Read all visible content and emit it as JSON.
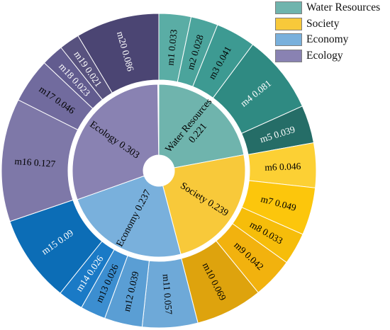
{
  "chart_data": {
    "type": "sunburst",
    "title": "",
    "legend_position": "top-right",
    "inner": [
      {
        "name": "Water Resources",
        "line1": "Water Resources",
        "line2": "0.221",
        "value": 0.221,
        "color": "#6fb4ad"
      },
      {
        "name": "Society",
        "line1": "Society  0.239",
        "line2": "",
        "value": 0.239,
        "color": "#f8c93a"
      },
      {
        "name": "Economy",
        "line1": "Economy  0.237",
        "line2": "",
        "value": 0.237,
        "color": "#79b0dc"
      },
      {
        "name": "Ecology",
        "line1": "Ecology  0.303",
        "line2": "",
        "value": 0.303,
        "color": "#8982b2"
      }
    ],
    "outer": [
      {
        "label": "m1  0.033",
        "value": 0.033,
        "group": "Water Resources",
        "color": "#5aada5",
        "text_color": "#000000"
      },
      {
        "label": "m2  0.028",
        "value": 0.028,
        "group": "Water Resources",
        "color": "#4ba49c",
        "text_color": "#000000"
      },
      {
        "label": "m3  0.041",
        "value": 0.041,
        "group": "Water Resources",
        "color": "#3d9a92",
        "text_color": "#000000"
      },
      {
        "label": "m4  0.081",
        "value": 0.081,
        "group": "Water Resources",
        "color": "#2f8a82",
        "text_color": "#ffffff"
      },
      {
        "label": "m5  0.039",
        "value": 0.039,
        "group": "Water Resources",
        "color": "#256d67",
        "text_color": "#ffffff"
      },
      {
        "label": "m6  0.046",
        "value": 0.046,
        "group": "Society",
        "color": "#fcd034",
        "text_color": "#000000"
      },
      {
        "label": "m7  0.049",
        "value": 0.049,
        "group": "Society",
        "color": "#fcc60c",
        "text_color": "#000000"
      },
      {
        "label": "m8  0.033",
        "value": 0.033,
        "group": "Society",
        "color": "#f6bd0a",
        "text_color": "#000000"
      },
      {
        "label": "m9  0.042",
        "value": 0.042,
        "group": "Society",
        "color": "#f2b20e",
        "text_color": "#000000"
      },
      {
        "label": "m10  0.069",
        "value": 0.069,
        "group": "Society",
        "color": "#dea30d",
        "text_color": "#000000"
      },
      {
        "label": "m11  0.057",
        "value": 0.057,
        "group": "Economy",
        "color": "#6ea9d8",
        "text_color": "#000000"
      },
      {
        "label": "m12  0.039",
        "value": 0.039,
        "group": "Economy",
        "color": "#5a9ed4",
        "text_color": "#000000"
      },
      {
        "label": "m13  0.026",
        "value": 0.026,
        "group": "Economy",
        "color": "#3c8ed0",
        "text_color": "#000000"
      },
      {
        "label": "m14  0.026",
        "value": 0.026,
        "group": "Economy",
        "color": "#1a7ac6",
        "text_color": "#ffffff"
      },
      {
        "label": "m15  0.09",
        "value": 0.09,
        "group": "Economy",
        "color": "#0c6db6",
        "text_color": "#ffffff"
      },
      {
        "label": "m16  0.127",
        "value": 0.127,
        "group": "Ecology",
        "color": "#7e78a8",
        "text_color": "#000000"
      },
      {
        "label": "m17  0.046",
        "value": 0.046,
        "group": "Ecology",
        "color": "#716b9e",
        "text_color": "#000000"
      },
      {
        "label": "m18  0.023",
        "value": 0.023,
        "group": "Ecology",
        "color": "#625c8f",
        "text_color": "#ffffff"
      },
      {
        "label": "m19  0.021",
        "value": 0.021,
        "group": "Ecology",
        "color": "#58527f",
        "text_color": "#ffffff"
      },
      {
        "label": "m20  0.086",
        "value": 0.086,
        "group": "Ecology",
        "color": "#4b4573",
        "text_color": "#ffffff"
      }
    ],
    "legend": [
      {
        "label": "Water Resources",
        "color": "#6fb4ad"
      },
      {
        "label": "Society",
        "color": "#f8c93a"
      },
      {
        "label": "Economy",
        "color": "#79b0dc"
      },
      {
        "label": "Ecology",
        "color": "#8982b2"
      }
    ]
  }
}
